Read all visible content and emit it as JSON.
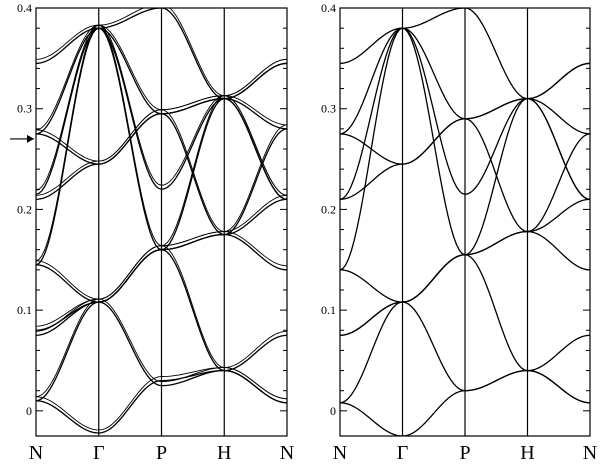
{
  "figure": {
    "arrow_marker": "right-arrow",
    "color": "#000000"
  },
  "chart_data": [
    {
      "type": "line",
      "panel": "left",
      "title": "",
      "xlabel": "",
      "ylabel": "",
      "ylim": [
        -0.025,
        0.4
      ],
      "yticks": [
        0,
        0.1,
        0.2,
        0.3,
        0.4
      ],
      "ytick_labels": [
        "0",
        "0.1",
        "0.2",
        "0.3",
        "0.4"
      ],
      "xticks": [
        "N",
        "Γ",
        "P",
        "H",
        "N"
      ],
      "annotation": {
        "type": "arrow",
        "y": 0.27
      },
      "bands_split": true,
      "series": [
        {
          "values": [
            0.01,
            -0.022,
            0.03,
            0.04,
            0.008
          ]
        },
        {
          "values": [
            0.01,
            0.108,
            0.025,
            0.04,
            0.008
          ]
        },
        {
          "values": [
            0.075,
            0.108,
            0.16,
            0.04,
            0.075
          ]
        },
        {
          "values": [
            0.08,
            0.108,
            0.16,
            0.175,
            0.14
          ]
        },
        {
          "values": [
            0.145,
            0.108,
            0.16,
            0.175,
            0.21
          ]
        },
        {
          "values": [
            0.145,
            0.38,
            0.16,
            0.31,
            0.21
          ]
        },
        {
          "values": [
            0.21,
            0.245,
            0.295,
            0.31,
            0.21
          ]
        },
        {
          "values": [
            0.215,
            0.38,
            0.22,
            0.31,
            0.28
          ]
        },
        {
          "values": [
            0.275,
            0.245,
            0.295,
            0.175,
            0.28
          ]
        },
        {
          "values": [
            0.275,
            0.38,
            0.295,
            0.31,
            0.345
          ]
        },
        {
          "values": [
            0.345,
            0.38,
            0.4,
            0.31,
            0.345
          ]
        }
      ]
    },
    {
      "type": "line",
      "panel": "right",
      "title": "",
      "xlabel": "",
      "ylabel": "",
      "ylim": [
        -0.025,
        0.4
      ],
      "yticks": [
        0,
        0.1,
        0.2,
        0.3,
        0.4
      ],
      "ytick_labels": [
        "0",
        "0.1",
        "0.2",
        "0.3",
        "0.4"
      ],
      "xticks": [
        "N",
        "Γ",
        "P",
        "H",
        "N"
      ],
      "bands_split": false,
      "series": [
        {
          "values": [
            0.008,
            -0.025,
            0.02,
            0.04,
            0.008
          ]
        },
        {
          "values": [
            0.008,
            0.108,
            0.02,
            0.04,
            0.008
          ]
        },
        {
          "values": [
            0.075,
            0.108,
            0.155,
            0.04,
            0.075
          ]
        },
        {
          "values": [
            0.075,
            0.108,
            0.155,
            0.178,
            0.14
          ]
        },
        {
          "values": [
            0.14,
            0.108,
            0.155,
            0.178,
            0.21
          ]
        },
        {
          "values": [
            0.14,
            0.38,
            0.155,
            0.31,
            0.21
          ]
        },
        {
          "values": [
            0.21,
            0.245,
            0.29,
            0.31,
            0.21
          ]
        },
        {
          "values": [
            0.21,
            0.38,
            0.215,
            0.31,
            0.275
          ]
        },
        {
          "values": [
            0.275,
            0.245,
            0.29,
            0.178,
            0.275
          ]
        },
        {
          "values": [
            0.275,
            0.38,
            0.29,
            0.31,
            0.345
          ]
        },
        {
          "values": [
            0.345,
            0.38,
            0.4,
            0.31,
            0.345
          ]
        }
      ]
    }
  ]
}
